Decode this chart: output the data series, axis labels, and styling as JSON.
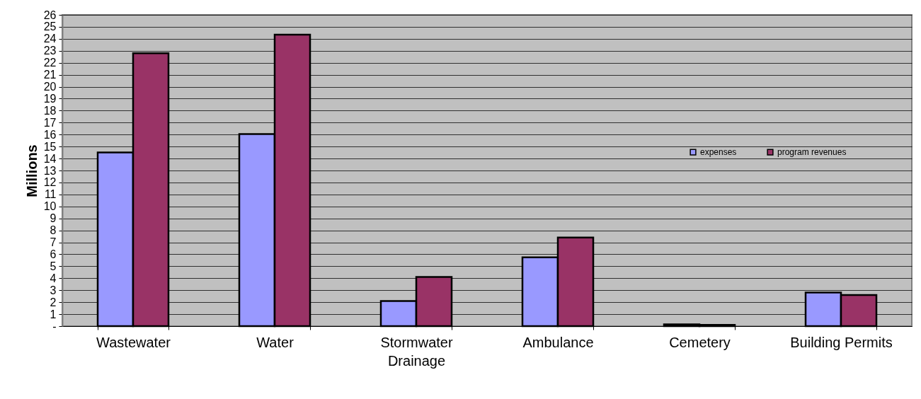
{
  "chart_data": {
    "type": "bar",
    "ylabel": "Millions",
    "categories": [
      "Wastewater",
      "Water",
      "Stormwater Drainage",
      "Ambulance",
      "Cemetery",
      "Building Permits"
    ],
    "series": [
      {
        "name": "expenses",
        "color": "#9999ff",
        "values": [
          14.5,
          16.05,
          2.1,
          5.75,
          0.15,
          2.8
        ]
      },
      {
        "name": "program revenues",
        "color": "#993366",
        "values": [
          22.8,
          24.35,
          4.1,
          7.4,
          0.1,
          2.6
        ]
      }
    ],
    "ylim": [
      0,
      26
    ],
    "yticks": [
      {
        "value": 0,
        "label": "-"
      },
      1,
      2,
      3,
      4,
      5,
      6,
      7,
      8,
      9,
      10,
      11,
      12,
      13,
      14,
      15,
      16,
      17,
      18,
      19,
      20,
      21,
      22,
      23,
      24,
      25,
      26
    ],
    "grid": "y",
    "legend": "right"
  }
}
